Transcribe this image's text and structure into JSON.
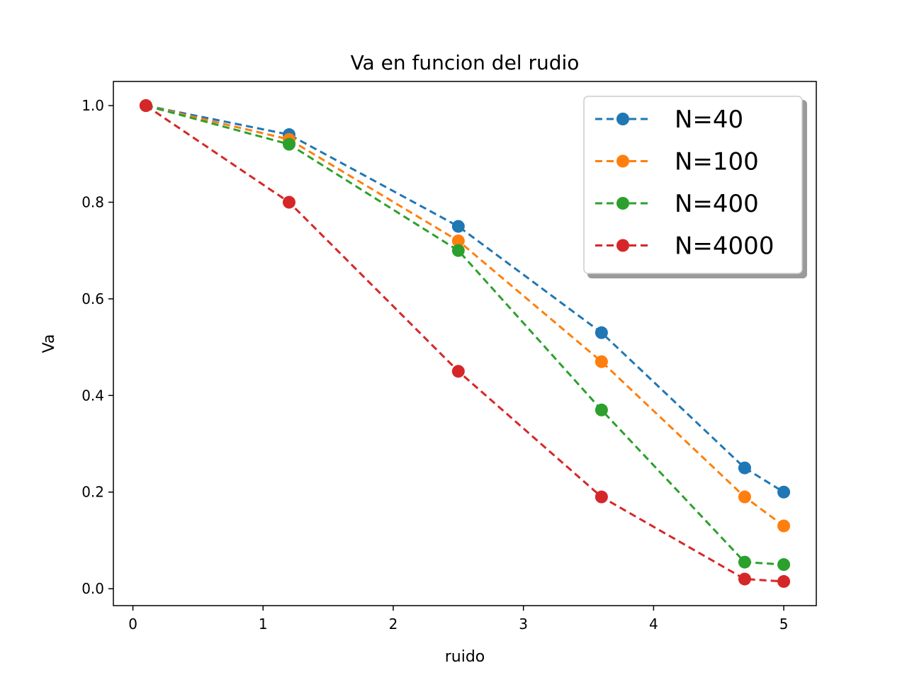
{
  "chart_data": {
    "type": "line",
    "title": "Va en funcion del rudio",
    "xlabel": "ruido",
    "ylabel": "Va",
    "xlim": [
      -0.15,
      5.25
    ],
    "ylim": [
      -0.035,
      1.05
    ],
    "xticks": [
      0,
      1,
      2,
      3,
      4,
      5
    ],
    "xtick_labels": [
      "0",
      "1",
      "2",
      "3",
      "4",
      "5"
    ],
    "yticks": [
      0.0,
      0.2,
      0.4,
      0.6,
      0.8,
      1.0
    ],
    "ytick_labels": [
      "0.0",
      "0.2",
      "0.4",
      "0.6",
      "0.8",
      "1.0"
    ],
    "grid": false,
    "legend_position": "top-right",
    "line_style": "dashed",
    "marker": "circle",
    "x": [
      0.1,
      1.2,
      2.5,
      3.6,
      4.7,
      5.0
    ],
    "series": [
      {
        "name": "N=40",
        "color": "#1f77b4",
        "values": [
          1.0,
          0.94,
          0.75,
          0.53,
          0.25,
          0.2
        ]
      },
      {
        "name": "N=100",
        "color": "#ff7f0e",
        "values": [
          1.0,
          0.93,
          0.72,
          0.47,
          0.19,
          0.13
        ]
      },
      {
        "name": "N=400",
        "color": "#2ca02c",
        "values": [
          1.0,
          0.92,
          0.7,
          0.37,
          0.055,
          0.05
        ]
      },
      {
        "name": "N=4000",
        "color": "#d62728",
        "values": [
          1.0,
          0.8,
          0.45,
          0.19,
          0.02,
          0.015
        ]
      }
    ]
  }
}
